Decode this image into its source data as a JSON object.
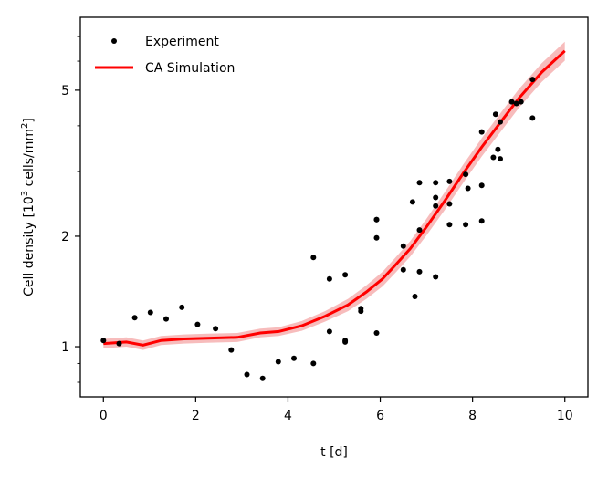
{
  "chart_data": {
    "type": "scatter+line",
    "title": "",
    "xlabel": "t [d]",
    "ylabel_prefix": "Cell density [10",
    "ylabel_exp1": "3",
    "ylabel_mid": " cells/mm",
    "ylabel_exp2": "2",
    "ylabel_suffix": "]",
    "xlim": [
      -0.5,
      10.5
    ],
    "ylim": [
      0.73,
      7.9
    ],
    "yscale": "log",
    "x_ticks": [
      0,
      2,
      4,
      6,
      8,
      10
    ],
    "x_tick_labels": [
      "0",
      "2",
      "4",
      "6",
      "8",
      "10"
    ],
    "y_ticks": [
      1,
      2,
      5
    ],
    "y_tick_labels": [
      "1",
      "2",
      "5"
    ],
    "y_minor_ticks": [
      0.8,
      0.9,
      3,
      4,
      6,
      7
    ],
    "grid": false,
    "legend_position": "top-left",
    "legend": {
      "experiment": "Experiment",
      "simulation": "CA Simulation"
    },
    "colors": {
      "experiment": "#000000",
      "simulation": "#ff0000",
      "band": "#f4a6a6"
    },
    "experiment": {
      "name": "Experiment",
      "x": [
        0,
        0.34,
        0.68,
        1.02,
        1.36,
        1.7,
        2.04,
        2.43,
        2.77,
        3.11,
        3.45,
        3.79,
        4.13,
        4.55,
        4.55,
        4.9,
        4.9,
        5.24,
        5.24,
        5.24,
        5.58,
        5.58,
        5.92,
        5.92,
        5.92,
        5.92,
        6.5,
        6.5,
        6.7,
        6.75,
        6.85,
        6.85,
        6.85,
        7.2,
        7.2,
        7.2,
        7.2,
        7.5,
        7.5,
        7.5,
        7.85,
        7.85,
        7.9,
        8.2,
        8.2,
        8.2,
        8.45,
        8.5,
        8.55,
        8.6,
        8.6,
        8.85,
        8.95,
        9.05,
        9.3,
        9.3
      ],
      "y": [
        1.04,
        1.02,
        1.2,
        1.24,
        1.19,
        1.28,
        1.15,
        1.12,
        0.98,
        0.84,
        0.82,
        0.91,
        0.93,
        0.9,
        1.75,
        1.1,
        1.53,
        1.57,
        1.04,
        1.03,
        1.27,
        1.25,
        1.09,
        1.98,
        2.22,
        2.22,
        1.88,
        1.62,
        2.48,
        1.37,
        2.08,
        1.6,
        2.8,
        2.55,
        2.8,
        2.42,
        1.55,
        2.45,
        2.82,
        2.15,
        2.95,
        2.15,
        2.7,
        3.85,
        2.75,
        2.2,
        3.28,
        4.3,
        3.45,
        4.1,
        3.25,
        4.65,
        4.6,
        4.65,
        5.35,
        4.2
      ]
    },
    "simulation": {
      "name": "CA Simulation",
      "x": [
        0,
        0.5,
        0.86,
        1.25,
        1.75,
        2.25,
        2.9,
        3.4,
        3.8,
        4.3,
        4.8,
        5.3,
        5.7,
        6.05,
        6.35,
        6.65,
        7.0,
        7.4,
        7.8,
        8.2,
        8.6,
        9.0,
        9.5,
        10.0
      ],
      "y": [
        1.02,
        1.03,
        1.01,
        1.04,
        1.05,
        1.055,
        1.06,
        1.09,
        1.1,
        1.14,
        1.21,
        1.3,
        1.41,
        1.53,
        1.68,
        1.85,
        2.12,
        2.5,
        2.97,
        3.5,
        4.08,
        4.75,
        5.6,
        6.4
      ],
      "band_width": [
        0.03,
        0.03,
        0.03,
        0.03,
        0.03,
        0.03,
        0.03,
        0.03,
        0.03,
        0.035,
        0.04,
        0.05,
        0.06,
        0.07,
        0.08,
        0.09,
        0.11,
        0.14,
        0.17,
        0.2,
        0.24,
        0.28,
        0.33,
        0.38
      ]
    }
  }
}
